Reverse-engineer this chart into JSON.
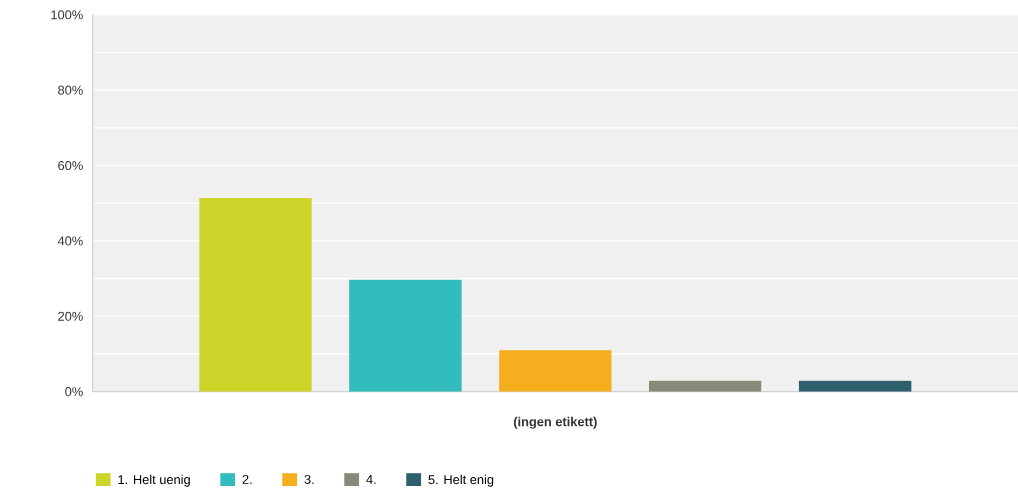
{
  "chart_data": {
    "type": "bar",
    "categories": [
      "(ingen etikett)"
    ],
    "series": [
      {
        "name": "1. Helt uenig",
        "color": "#cdd42a",
        "values": [
          51.4
        ]
      },
      {
        "name": "2.",
        "color": "#33bcbd",
        "values": [
          29.7
        ]
      },
      {
        "name": "3.",
        "color": "#f5ae1e",
        "values": [
          11.0
        ]
      },
      {
        "name": "4.",
        "color": "#888a78",
        "values": [
          2.9
        ]
      },
      {
        "name": "5. Helt enig",
        "color": "#2e5f6d",
        "values": [
          2.9
        ]
      }
    ],
    "ylim": [
      0,
      100
    ],
    "yticks": [
      {
        "value": 0,
        "label": "0%"
      },
      {
        "value": 10,
        "label": null
      },
      {
        "value": 20,
        "label": "20%"
      },
      {
        "value": 30,
        "label": null
      },
      {
        "value": 40,
        "label": "40%"
      },
      {
        "value": 50,
        "label": null
      },
      {
        "value": 60,
        "label": "60%"
      },
      {
        "value": 70,
        "label": null
      },
      {
        "value": 80,
        "label": "80%"
      },
      {
        "value": 90,
        "label": null
      },
      {
        "value": 100,
        "label": "100%"
      }
    ],
    "grid": "y",
    "legend": "bottom"
  }
}
